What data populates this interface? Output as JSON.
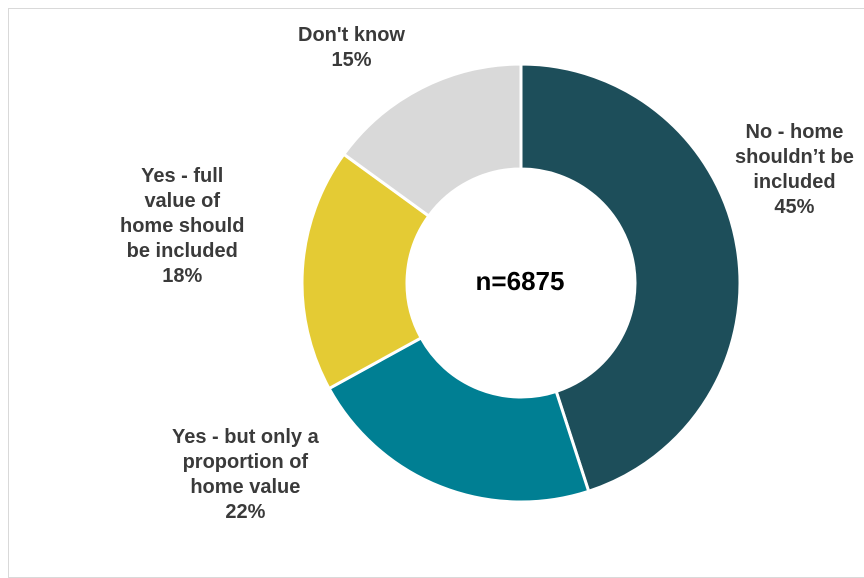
{
  "chart_data": {
    "type": "pie",
    "style": "donut",
    "center_label": "n=6875",
    "slices": [
      {
        "label": "No - home shouldn’t be included",
        "lines": [
          "No - home",
          "shouldn’t be",
          "included"
        ],
        "value": 45,
        "pct_label": "45%",
        "color": "#1d4e5a"
      },
      {
        "label": "Yes - but only a proportion of home value",
        "lines": [
          "Yes - but only a",
          "proportion of",
          "home value"
        ],
        "value": 22,
        "pct_label": "22%",
        "color": "#007f93"
      },
      {
        "label": "Yes - full value of home should be included",
        "lines": [
          "Yes - full",
          "value of",
          "home should",
          "be included"
        ],
        "value": 18,
        "pct_label": "18%",
        "color": "#e4cb34"
      },
      {
        "label": "Don't know",
        "lines": [
          "Don't know"
        ],
        "value": 15,
        "pct_label": "15%",
        "color": "#d9d9d9"
      }
    ]
  }
}
